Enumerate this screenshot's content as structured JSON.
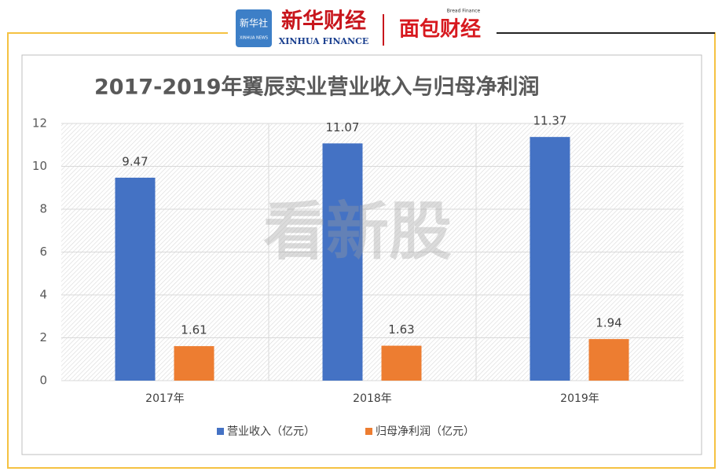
{
  "header": {
    "agency": "新华社",
    "agency_en": "XINHUA NEWS",
    "brand": "新华财经",
    "brand_en": "XINHUA FINANCE",
    "partner": "面包财经",
    "partner_en": "Bread Finance"
  },
  "watermark": "看新股",
  "chart_data": {
    "type": "bar",
    "title": "2017-2019年翼辰实业营业收入与归母净利润",
    "categories": [
      "2017年",
      "2018年",
      "2019年"
    ],
    "series": [
      {
        "name": "营业收入（亿元）",
        "color": "#4472c4",
        "values": [
          9.47,
          11.07,
          11.37
        ]
      },
      {
        "name": "归母净利润（亿元）",
        "color": "#ed7d31",
        "values": [
          1.61,
          1.63,
          1.94
        ]
      }
    ],
    "ylim": [
      0,
      12
    ],
    "yticks": [
      0,
      2,
      4,
      6,
      8,
      10,
      12
    ],
    "grid": true,
    "legend": "bottom"
  }
}
